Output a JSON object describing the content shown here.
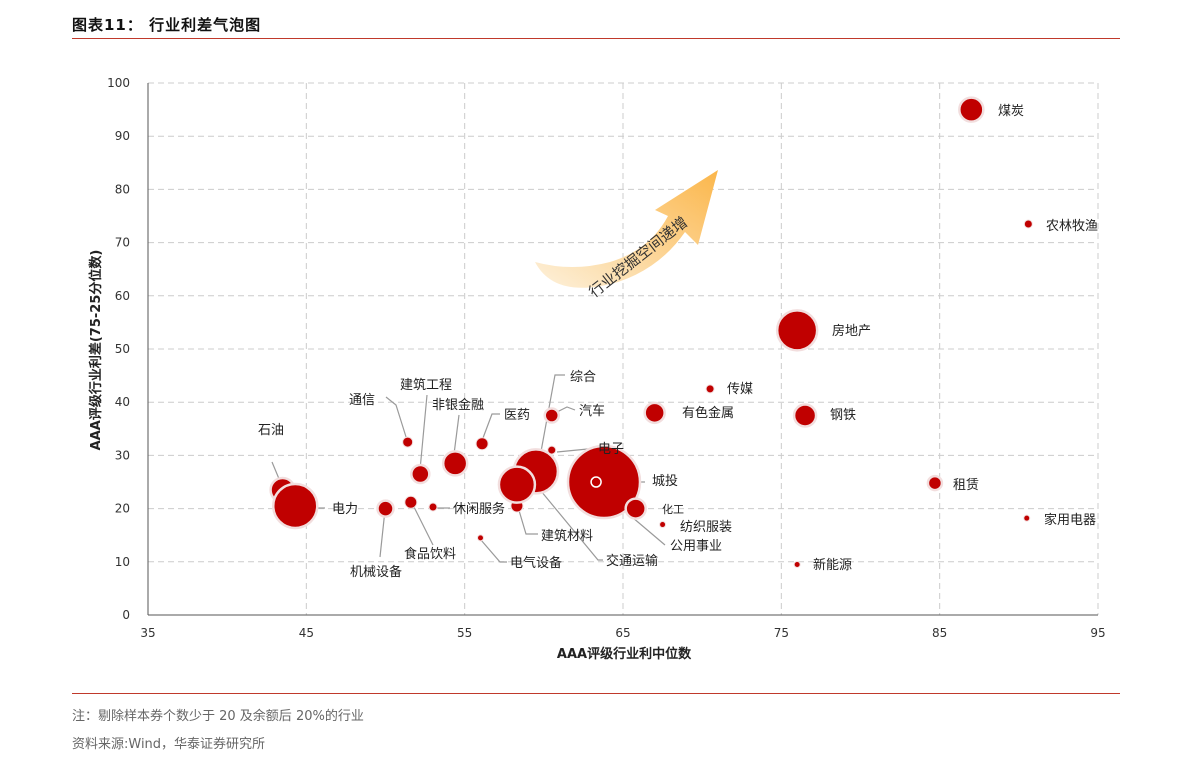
{
  "figure": {
    "title": "图表11：  行业利差气泡图",
    "note": "注：剔除样本券个数少于 20 及余额后 20%的行业",
    "source": "资料来源:Wind，华泰证券研究所"
  },
  "colors": {
    "bubble": "#c00000",
    "rule": "#c0392b",
    "grid": "#cccccc",
    "arrow_start": "#fdf1dc",
    "arrow_end": "#fbb64a"
  },
  "chart_data": {
    "type": "scatter",
    "xlabel": "AAA评级行业利中位数",
    "ylabel": "AAA评级行业利差(75-25分位数)",
    "xlim": [
      35,
      95
    ],
    "ylim": [
      0,
      100
    ],
    "xticks": [
      35,
      45,
      55,
      65,
      75,
      85,
      95
    ],
    "yticks": [
      0,
      10,
      20,
      30,
      40,
      50,
      60,
      70,
      80,
      90,
      100
    ],
    "grid": true,
    "annotation": "行业挖掘空间递增",
    "points": [
      {
        "name": "煤炭",
        "x": 87.0,
        "y": 95.0,
        "size": 12
      },
      {
        "name": "农林牧渔",
        "x": 90.6,
        "y": 73.5,
        "size": 4
      },
      {
        "name": "房地产",
        "x": 76.0,
        "y": 53.5,
        "size": 20
      },
      {
        "name": "传媒",
        "x": 70.5,
        "y": 42.5,
        "size": 4
      },
      {
        "name": "有色金属",
        "x": 67.0,
        "y": 38.0,
        "size": 10
      },
      {
        "name": "钢铁",
        "x": 76.5,
        "y": 37.5,
        "size": 11
      },
      {
        "name": "综合",
        "x": 59.5,
        "y": 27.0,
        "size": 22
      },
      {
        "name": "汽车",
        "x": 60.5,
        "y": 37.5,
        "size": 7
      },
      {
        "name": "电子",
        "x": 60.5,
        "y": 31.0,
        "size": 4
      },
      {
        "name": "城投",
        "x": 63.8,
        "y": 25.0,
        "size": 36
      },
      {
        "name": "化工",
        "x": 65.8,
        "y": 20.0,
        "size": 10
      },
      {
        "name": "纺织服装",
        "x": 67.5,
        "y": 17.0,
        "size": 3
      },
      {
        "name": "公用事业",
        "x": 63.3,
        "y": 25.0,
        "size": 5
      },
      {
        "name": "租赁",
        "x": 84.7,
        "y": 24.8,
        "size": 7
      },
      {
        "name": "家用电器",
        "x": 90.5,
        "y": 18.2,
        "size": 3
      },
      {
        "name": "新能源",
        "x": 76.0,
        "y": 9.5,
        "size": 3
      },
      {
        "name": "石油",
        "x": 43.5,
        "y": 23.5,
        "size": 12
      },
      {
        "name": "电力",
        "x": 44.3,
        "y": 20.5,
        "size": 22
      },
      {
        "name": "通信",
        "x": 51.4,
        "y": 32.5,
        "size": 5
      },
      {
        "name": "建筑工程",
        "x": 52.2,
        "y": 26.5,
        "size": 9
      },
      {
        "name": "非银金融",
        "x": 54.4,
        "y": 28.5,
        "size": 12
      },
      {
        "name": "医药",
        "x": 56.1,
        "y": 32.2,
        "size": 6
      },
      {
        "name": "机械设备",
        "x": 50.0,
        "y": 20.0,
        "size": 8
      },
      {
        "name": "食品饮料",
        "x": 51.6,
        "y": 21.2,
        "size": 6
      },
      {
        "name": "休闲服务",
        "x": 53.0,
        "y": 20.3,
        "size": 4
      },
      {
        "name": "建筑材料",
        "x": 58.3,
        "y": 20.5,
        "size": 6
      },
      {
        "name": "电气设备",
        "x": 56.0,
        "y": 14.5,
        "size": 3
      },
      {
        "name": "交通运输",
        "x": 58.3,
        "y": 24.5,
        "size": 18
      }
    ]
  }
}
